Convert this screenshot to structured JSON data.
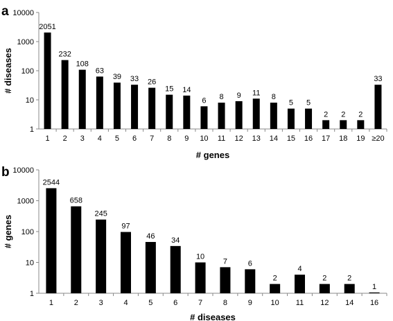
{
  "chart_data": [
    {
      "panel_label": "a",
      "type": "bar",
      "scale": "log",
      "xlabel": "# genes",
      "ylabel": "# diseases",
      "ylim": [
        1,
        10000
      ],
      "y_ticks": [
        "1",
        "10",
        "100",
        "1000",
        "10000"
      ],
      "grid": false,
      "categories": [
        "1",
        "2",
        "3",
        "4",
        "5",
        "6",
        "7",
        "8",
        "9",
        "10",
        "11",
        "12",
        "13",
        "14",
        "15",
        "16",
        "17",
        "18",
        "19",
        "≥20"
      ],
      "values": [
        2051,
        232,
        108,
        63,
        39,
        33,
        26,
        15,
        14,
        6,
        8,
        9,
        11,
        8,
        5,
        5,
        2,
        2,
        2,
        33
      ],
      "value_labels": [
        "2051",
        "232",
        "108",
        "63",
        "39",
        "33",
        "26",
        "15",
        "14",
        "6",
        "8",
        "9",
        "11",
        "8",
        "5",
        "5",
        "2",
        "2",
        "2",
        "33"
      ],
      "bar_color": "#000000"
    },
    {
      "panel_label": "b",
      "type": "bar",
      "scale": "log",
      "xlabel": "# diseases",
      "ylabel": "# genes",
      "ylim": [
        1,
        10000
      ],
      "y_ticks": [
        "1",
        "10",
        "100",
        "1000",
        "10000"
      ],
      "grid": false,
      "categories": [
        "1",
        "2",
        "3",
        "4",
        "5",
        "6",
        "7",
        "8",
        "9",
        "10",
        "11",
        "12",
        "14",
        "16"
      ],
      "values": [
        2544,
        658,
        245,
        97,
        46,
        34,
        10,
        7,
        6,
        2,
        4,
        2,
        2,
        1
      ],
      "value_labels": [
        "2544",
        "658",
        "245",
        "97",
        "46",
        "34",
        "10",
        "7",
        "6",
        "2",
        "4",
        "2",
        "2",
        "1"
      ],
      "bar_color": "#000000"
    }
  ]
}
